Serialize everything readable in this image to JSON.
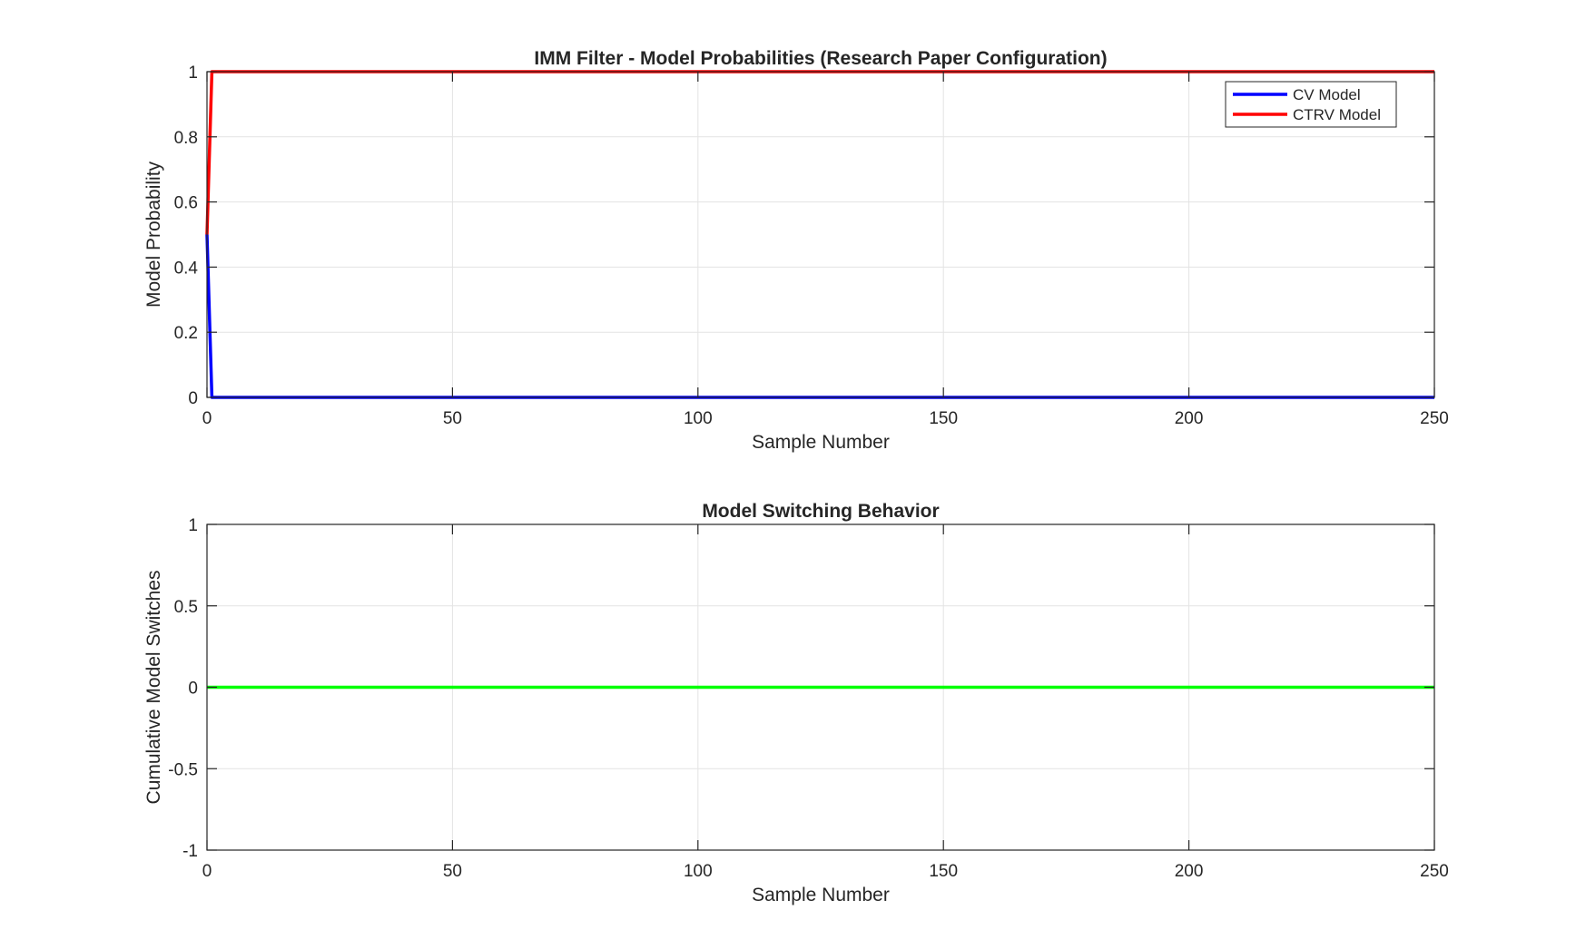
{
  "chart_data": [
    {
      "type": "line",
      "title": "IMM Filter - Model Probabilities (Research Paper Configuration)",
      "xlabel": "Sample Number",
      "ylabel": "Model Probability",
      "xlim": [
        0,
        250
      ],
      "ylim": [
        0,
        1
      ],
      "x_ticks": [
        0,
        50,
        100,
        150,
        200,
        250
      ],
      "y_ticks": [
        0,
        0.2,
        0.4,
        0.6,
        0.8,
        1
      ],
      "x_tick_labels": [
        "0",
        "50",
        "100",
        "150",
        "200",
        "250"
      ],
      "y_tick_labels": [
        "0",
        "0.2",
        "0.4",
        "0.6",
        "0.8",
        "1"
      ],
      "grid": true,
      "legend": "top-right",
      "series": [
        {
          "name": "CV Model",
          "color": "#0000ff",
          "x": [
            0,
            1,
            250
          ],
          "y": [
            0.5,
            0.0,
            0.0
          ]
        },
        {
          "name": "CTRV Model",
          "color": "#ff0000",
          "x": [
            0,
            1,
            250
          ],
          "y": [
            0.5,
            1.0,
            1.0
          ]
        }
      ]
    },
    {
      "type": "line",
      "title": "Model Switching Behavior",
      "xlabel": "Sample Number",
      "ylabel": "Cumulative Model Switches",
      "xlim": [
        0,
        250
      ],
      "ylim": [
        -1,
        1
      ],
      "x_ticks": [
        0,
        50,
        100,
        150,
        200,
        250
      ],
      "y_ticks": [
        -1,
        -0.5,
        0,
        0.5,
        1
      ],
      "x_tick_labels": [
        "0",
        "50",
        "100",
        "150",
        "200",
        "250"
      ],
      "y_tick_labels": [
        "-1",
        "-0.5",
        "0",
        "0.5",
        "1"
      ],
      "grid": true,
      "legend": "none",
      "series": [
        {
          "color": "#00ff00",
          "x": [
            0,
            250
          ],
          "y": [
            0,
            0
          ]
        }
      ]
    }
  ]
}
